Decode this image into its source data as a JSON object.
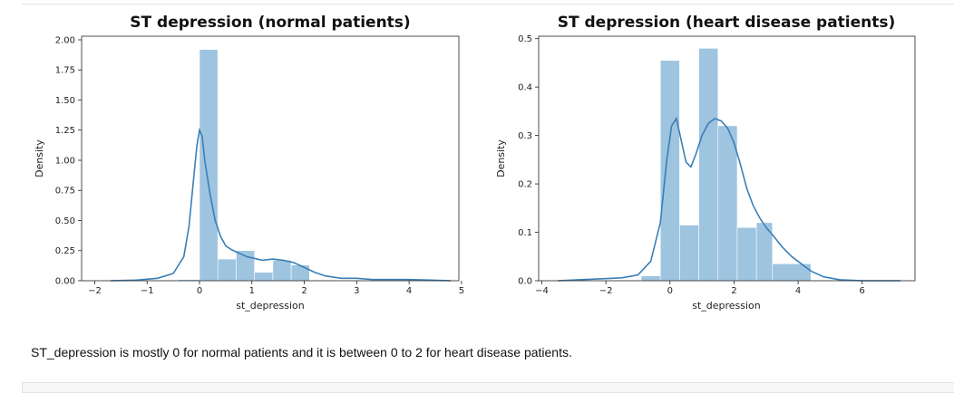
{
  "caption": "ST_depression is mostly 0 for normal patients and it is between 0 to 2 for heart disease patients.",
  "colors": {
    "hist_fill": "#9ec4e0",
    "kde_line": "#3a7fb7",
    "axis": "#222222"
  },
  "chart_data": [
    {
      "type": "histogram",
      "title": "ST depression (normal patients)",
      "xlabel": "st_depression",
      "ylabel": "Density",
      "xlim": [
        -2.25,
        4.95
      ],
      "ylim": [
        0.0,
        2.03
      ],
      "xticks": [
        -2,
        -1,
        0,
        1,
        2,
        3,
        4,
        5
      ],
      "xtick_labels": [
        "−2",
        "−1",
        "0",
        "1",
        "2",
        "3",
        "4",
        "5"
      ],
      "yticks": [
        0.0,
        0.25,
        0.5,
        0.75,
        1.0,
        1.25,
        1.5,
        1.75,
        2.0
      ],
      "ytick_labels": [
        "0.00",
        "0.25",
        "0.50",
        "0.75",
        "1.00",
        "1.25",
        "1.50",
        "1.75",
        "2.00"
      ],
      "grid": false,
      "legend": "none",
      "bins": [
        {
          "x0": -0.4,
          "x1": 0.0,
          "density": 0.01
        },
        {
          "x0": 0.0,
          "x1": 0.35,
          "density": 1.92
        },
        {
          "x0": 0.35,
          "x1": 0.7,
          "density": 0.18
        },
        {
          "x0": 0.7,
          "x1": 1.05,
          "density": 0.25
        },
        {
          "x0": 1.05,
          "x1": 1.4,
          "density": 0.07
        },
        {
          "x0": 1.4,
          "x1": 1.75,
          "density": 0.17
        },
        {
          "x0": 1.75,
          "x1": 2.1,
          "density": 0.13
        }
      ],
      "kde": {
        "x": [
          -1.7,
          -1.2,
          -0.8,
          -0.5,
          -0.3,
          -0.2,
          -0.1,
          -0.05,
          0.0,
          0.05,
          0.1,
          0.2,
          0.3,
          0.4,
          0.5,
          0.6,
          0.7,
          0.8,
          0.9,
          1.0,
          1.2,
          1.4,
          1.6,
          1.8,
          2.0,
          2.2,
          2.4,
          2.7,
          3.0,
          3.3,
          3.6,
          4.0,
          4.4,
          4.8
        ],
        "y": [
          0.0,
          0.005,
          0.02,
          0.06,
          0.2,
          0.45,
          0.9,
          1.12,
          1.25,
          1.2,
          1.0,
          0.72,
          0.5,
          0.37,
          0.29,
          0.26,
          0.24,
          0.22,
          0.2,
          0.19,
          0.17,
          0.18,
          0.17,
          0.15,
          0.11,
          0.07,
          0.04,
          0.02,
          0.02,
          0.01,
          0.01,
          0.01,
          0.005,
          0.0
        ]
      }
    },
    {
      "type": "histogram",
      "title": "ST depression (heart disease patients)",
      "xlabel": "st_depression",
      "ylabel": "Density",
      "xlim": [
        -4.1,
        7.65
      ],
      "ylim": [
        0.0,
        0.505
      ],
      "xticks": [
        -4,
        -2,
        0,
        2,
        4,
        6
      ],
      "xtick_labels": [
        "−4",
        "−2",
        "0",
        "2",
        "4",
        "6"
      ],
      "yticks": [
        0.0,
        0.1,
        0.2,
        0.3,
        0.4,
        0.5
      ],
      "ytick_labels": [
        "0.0",
        "0.1",
        "0.2",
        "0.3",
        "0.4",
        "0.5"
      ],
      "grid": false,
      "legend": "none",
      "bins": [
        {
          "x0": -0.9,
          "x1": -0.3,
          "density": 0.01
        },
        {
          "x0": -0.3,
          "x1": 0.3,
          "density": 0.455
        },
        {
          "x0": 0.3,
          "x1": 0.9,
          "density": 0.115
        },
        {
          "x0": 0.9,
          "x1": 1.5,
          "density": 0.48
        },
        {
          "x0": 1.5,
          "x1": 2.1,
          "density": 0.32
        },
        {
          "x0": 2.1,
          "x1": 2.7,
          "density": 0.11
        },
        {
          "x0": 2.7,
          "x1": 3.2,
          "density": 0.12
        },
        {
          "x0": 3.2,
          "x1": 4.4,
          "density": 0.035
        }
      ],
      "kde": {
        "x": [
          -3.5,
          -2.5,
          -1.5,
          -1.0,
          -0.6,
          -0.3,
          -0.1,
          0.05,
          0.2,
          0.35,
          0.5,
          0.65,
          0.8,
          1.0,
          1.2,
          1.4,
          1.6,
          1.8,
          2.0,
          2.2,
          2.4,
          2.6,
          2.8,
          3.0,
          3.2,
          3.5,
          3.8,
          4.1,
          4.4,
          4.8,
          5.3,
          6.0,
          6.7,
          7.2
        ],
        "y": [
          0.0,
          0.003,
          0.006,
          0.012,
          0.04,
          0.12,
          0.25,
          0.32,
          0.335,
          0.29,
          0.245,
          0.235,
          0.26,
          0.3,
          0.325,
          0.335,
          0.33,
          0.315,
          0.285,
          0.24,
          0.19,
          0.155,
          0.13,
          0.11,
          0.095,
          0.07,
          0.05,
          0.035,
          0.02,
          0.008,
          0.002,
          0.0,
          0.0,
          0.0
        ]
      }
    }
  ]
}
